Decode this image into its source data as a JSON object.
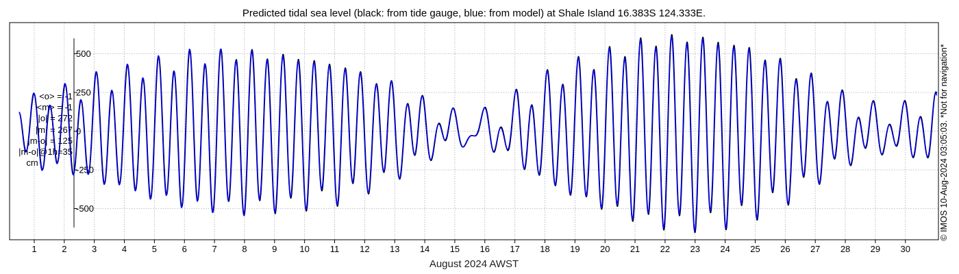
{
  "chart_data": {
    "type": "line",
    "title": "Predicted tidal sea level (black: from tide gauge, blue: from model) at Shale Island 16.383S 124.333E.",
    "xlabel": "August 2024 AWST",
    "ylabel": "",
    "xlim": [
      0.18,
      31.1
    ],
    "ylim": [
      -700,
      700
    ],
    "y_ticks": [
      500,
      250,
      0,
      -250,
      -500
    ],
    "y_tick_labels": [
      "500",
      "250",
      "0",
      "-250",
      "-500"
    ],
    "x_ticks": [
      1,
      2,
      3,
      4,
      5,
      6,
      7,
      8,
      9,
      10,
      11,
      12,
      13,
      14,
      15,
      16,
      17,
      18,
      19,
      20,
      21,
      22,
      23,
      24,
      25,
      26,
      27,
      28,
      29,
      30
    ],
    "x_tick_labels": [
      "1",
      "2",
      "3",
      "4",
      "5",
      "6",
      "7",
      "8",
      "9",
      "10",
      "11",
      "12",
      "13",
      "14",
      "15",
      "16",
      "17",
      "18",
      "19",
      "20",
      "21",
      "22",
      "23",
      "24",
      "25",
      "26",
      "27",
      "28",
      "29",
      "30"
    ],
    "grid": true,
    "series": [
      {
        "name": "from tide gauge",
        "color": "#000000",
        "envelope_days": [
          0.5,
          2,
          3.5,
          5,
          6.5,
          8,
          9.5,
          11,
          12.5,
          13.5,
          14.5,
          15.5,
          16.5,
          17.5,
          18.5,
          19.5,
          20.5,
          21.5,
          22.5,
          23.5,
          24.5,
          25.5,
          26.5,
          27.5,
          28.5,
          29.5,
          30.5,
          31
        ],
        "semi_diurnal_amp": [
          170,
          240,
          330,
          420,
          480,
          500,
          480,
          430,
          330,
          220,
          110,
          40,
          110,
          250,
          370,
          450,
          520,
          580,
          600,
          590,
          550,
          470,
          370,
          240,
          150,
          110,
          160,
          190
        ],
        "diurnal_amp": [
          70,
          70,
          70,
          65,
          60,
          55,
          50,
          55,
          65,
          75,
          80,
          85,
          85,
          80,
          70,
          60,
          55,
          55,
          60,
          65,
          70,
          75,
          80,
          80,
          75,
          70,
          65,
          65
        ],
        "mean": -1
      },
      {
        "name": "from model",
        "color": "#0000ee",
        "envelope_days": [
          0.5,
          2,
          3.5,
          5,
          6.5,
          8,
          9.5,
          11,
          12.5,
          13.5,
          14.5,
          15.5,
          16.5,
          17.5,
          18.5,
          19.5,
          20.5,
          21.5,
          22.5,
          23.5,
          24.5,
          25.5,
          26.5,
          27.5,
          28.5,
          29.5,
          30.5,
          31
        ],
        "semi_diurnal_amp": [
          175,
          245,
          335,
          425,
          485,
          495,
          470,
          420,
          325,
          215,
          105,
          40,
          105,
          245,
          365,
          445,
          510,
          570,
          590,
          580,
          540,
          460,
          360,
          235,
          145,
          105,
          155,
          185
        ],
        "diurnal_amp": [
          70,
          70,
          70,
          65,
          60,
          55,
          50,
          55,
          65,
          75,
          80,
          85,
          85,
          80,
          70,
          60,
          55,
          55,
          60,
          65,
          70,
          75,
          80,
          80,
          75,
          70,
          65,
          65
        ],
        "mean": -1
      }
    ]
  },
  "stats": {
    "mean_obs": "<o> = -1",
    "mean_model": "<m> = -1",
    "abs_obs": "|o| = 272",
    "abs_model": "|m| = 267",
    "abs_diff": "|m-o| = 125",
    "abs_diff_1h": "|m-o|@1h=35",
    "unit": "cm"
  },
  "side_note": "© IMOS 10-Aug-2024 03:05:03. *Not for navigation*"
}
